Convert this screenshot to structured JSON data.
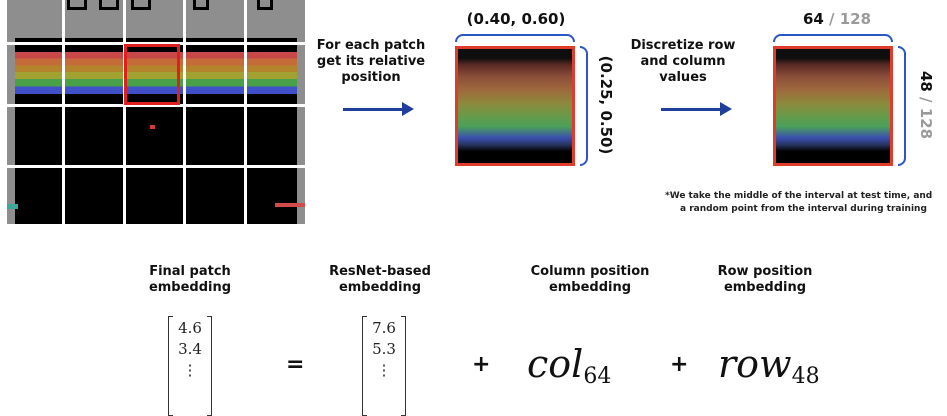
{
  "top": {
    "step1_text": "For each patch get its relative position",
    "relative_col": "(0.40, 0.60)",
    "relative_row": "(0.25, 0.50)",
    "step2_text": "Discretize row and column values",
    "col_bin": "64",
    "col_total": "/ 128",
    "row_bin": "48",
    "row_total": "/ 128",
    "footnote_line1": "*We take the middle of the interval at test time, and",
    "footnote_line2": "a random point from the interval during training"
  },
  "equation": {
    "headers": {
      "final": "Final patch embedding",
      "resnet": "ResNet-based embedding",
      "column": "Column position embedding",
      "row": "Row position embedding"
    },
    "final_vec": [
      "4.6",
      "3.4",
      "⋮"
    ],
    "resnet_vec": [
      "7.6",
      "5.3",
      "⋮"
    ],
    "equals": "=",
    "plus1": "+",
    "plus2": "+",
    "col_symbol": "col",
    "col_sub": "64",
    "row_symbol": "row",
    "row_sub": "48"
  }
}
